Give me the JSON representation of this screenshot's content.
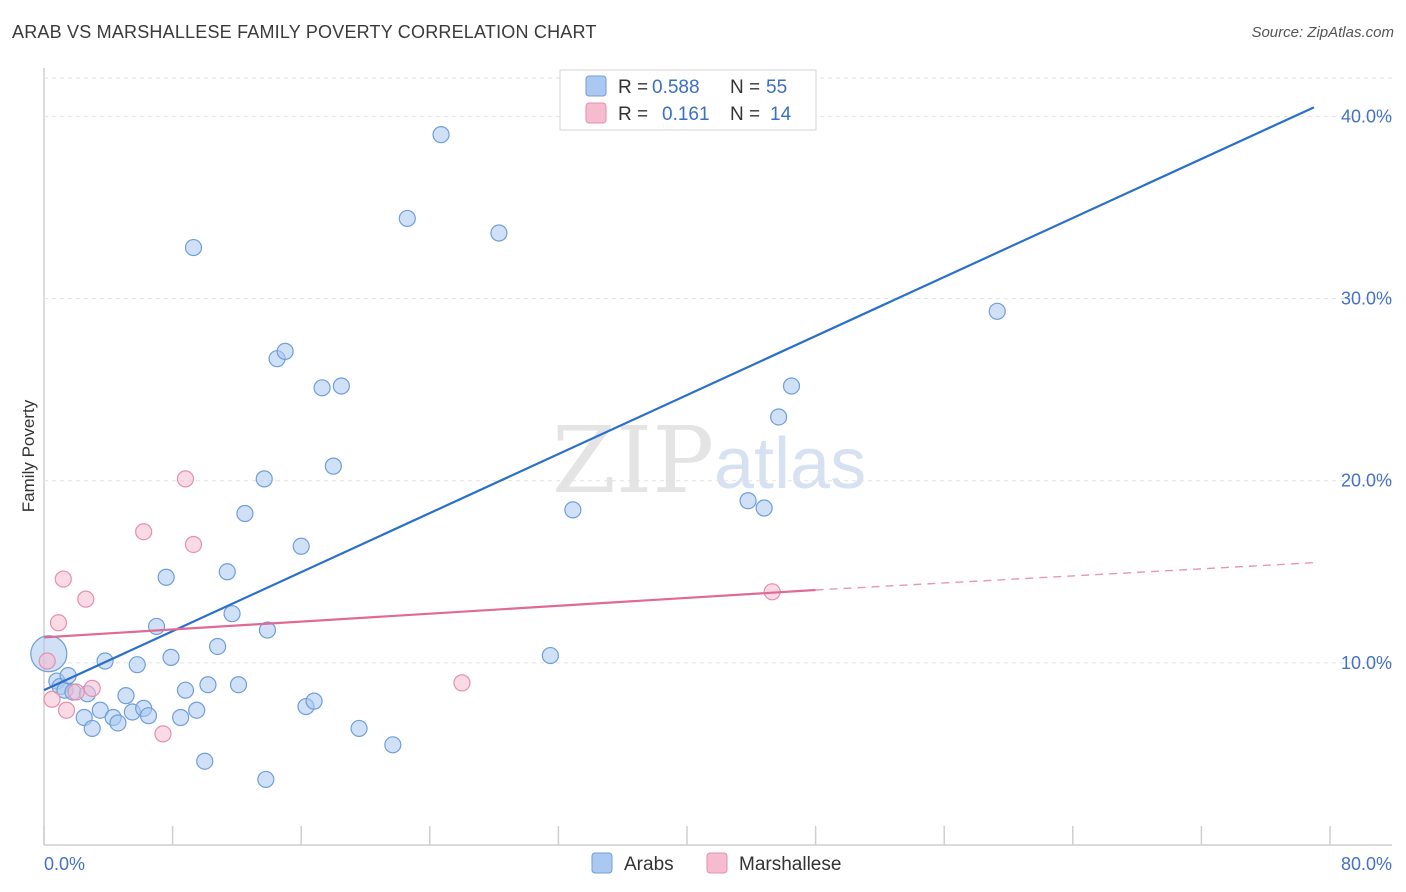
{
  "header": {
    "title": "ARAB VS MARSHALLESE FAMILY POVERTY CORRELATION CHART",
    "source": "Source: ZipAtlas.com"
  },
  "watermark": {
    "zip": "ZIP",
    "atlas": "atlas"
  },
  "legend": {
    "rows": [
      {
        "r_label": "R =",
        "r_value": "0.588",
        "n_label": "N =",
        "n_value": "55",
        "color": "#aac8f0"
      },
      {
        "r_label": "R =",
        "r_value": "0.161",
        "n_label": "N =",
        "n_value": "14",
        "color": "#f5bcd0"
      }
    ]
  },
  "bottom_legend": {
    "series_a": "Arabs",
    "series_b": "Marshallese"
  },
  "chart_data": {
    "type": "scatter",
    "title": "ARAB VS MARSHALLESE FAMILY POVERTY CORRELATION CHART",
    "ylabel": "Family Poverty",
    "xlabel": "",
    "xlim": [
      0,
      80
    ],
    "ylim": [
      0,
      42
    ],
    "x_tick_labels": [
      "0.0%",
      "80.0%"
    ],
    "y_ticks": [
      10,
      20,
      30,
      40
    ],
    "y_tick_labels": [
      "10.0%",
      "20.0%",
      "30.0%",
      "40.0%"
    ],
    "grid": true,
    "legend_placement": "top-center",
    "series": [
      {
        "name": "Arabs",
        "color": "#aac8f0",
        "stroke": "#6f9fd8",
        "trend_color": "#2a6fcc",
        "trend": {
          "x": [
            0,
            79
          ],
          "y": [
            8.5,
            40.5
          ]
        },
        "points": [
          [
            0.3,
            10.5
          ],
          [
            0.8,
            9.0
          ],
          [
            1.0,
            8.7
          ],
          [
            1.3,
            8.5
          ],
          [
            1.5,
            9.3
          ],
          [
            1.8,
            8.4
          ],
          [
            2.5,
            7.0
          ],
          [
            2.7,
            8.3
          ],
          [
            3.0,
            6.4
          ],
          [
            3.5,
            7.4
          ],
          [
            3.8,
            10.1
          ],
          [
            4.3,
            7.0
          ],
          [
            4.6,
            6.7
          ],
          [
            5.1,
            8.2
          ],
          [
            5.5,
            7.3
          ],
          [
            5.8,
            9.9
          ],
          [
            6.2,
            7.5
          ],
          [
            6.5,
            7.1
          ],
          [
            7.0,
            12.0
          ],
          [
            7.6,
            14.7
          ],
          [
            7.9,
            10.3
          ],
          [
            8.5,
            7.0
          ],
          [
            8.8,
            8.5
          ],
          [
            9.3,
            32.8
          ],
          [
            9.5,
            7.4
          ],
          [
            10.0,
            4.6
          ],
          [
            10.2,
            8.8
          ],
          [
            10.8,
            10.9
          ],
          [
            11.4,
            15.0
          ],
          [
            11.7,
            12.7
          ],
          [
            12.1,
            8.8
          ],
          [
            12.5,
            18.2
          ],
          [
            13.7,
            20.1
          ],
          [
            13.8,
            3.6
          ],
          [
            13.9,
            11.8
          ],
          [
            14.5,
            26.7
          ],
          [
            15.0,
            27.1
          ],
          [
            16.0,
            16.4
          ],
          [
            16.3,
            7.6
          ],
          [
            16.8,
            7.9
          ],
          [
            17.3,
            25.1
          ],
          [
            18.0,
            20.8
          ],
          [
            18.5,
            25.2
          ],
          [
            19.6,
            6.4
          ],
          [
            21.7,
            5.5
          ],
          [
            22.6,
            34.4
          ],
          [
            24.7,
            39.0
          ],
          [
            28.3,
            33.6
          ],
          [
            31.5,
            10.4
          ],
          [
            32.9,
            18.4
          ],
          [
            43.8,
            18.9
          ],
          [
            44.8,
            18.5
          ],
          [
            45.7,
            23.5
          ],
          [
            46.5,
            25.2
          ],
          [
            59.3,
            29.3
          ]
        ]
      },
      {
        "name": "Marshallese",
        "color": "#f5bcd0",
        "stroke": "#e68fae",
        "trend_color": "#e06a96",
        "trend": {
          "x": [
            0,
            48
          ],
          "y": [
            11.4,
            14.0
          ]
        },
        "trend_dashed": {
          "x": [
            48,
            79
          ],
          "y": [
            14.0,
            15.5
          ]
        },
        "points": [
          [
            0.2,
            10.1
          ],
          [
            0.5,
            8.0
          ],
          [
            0.9,
            12.2
          ],
          [
            1.2,
            14.6
          ],
          [
            1.4,
            7.4
          ],
          [
            2.0,
            8.4
          ],
          [
            2.6,
            13.5
          ],
          [
            3.0,
            8.6
          ],
          [
            6.2,
            17.2
          ],
          [
            7.4,
            6.1
          ],
          [
            8.8,
            20.1
          ],
          [
            9.3,
            16.5
          ],
          [
            26.0,
            8.9
          ],
          [
            45.3,
            13.9
          ]
        ]
      }
    ]
  }
}
